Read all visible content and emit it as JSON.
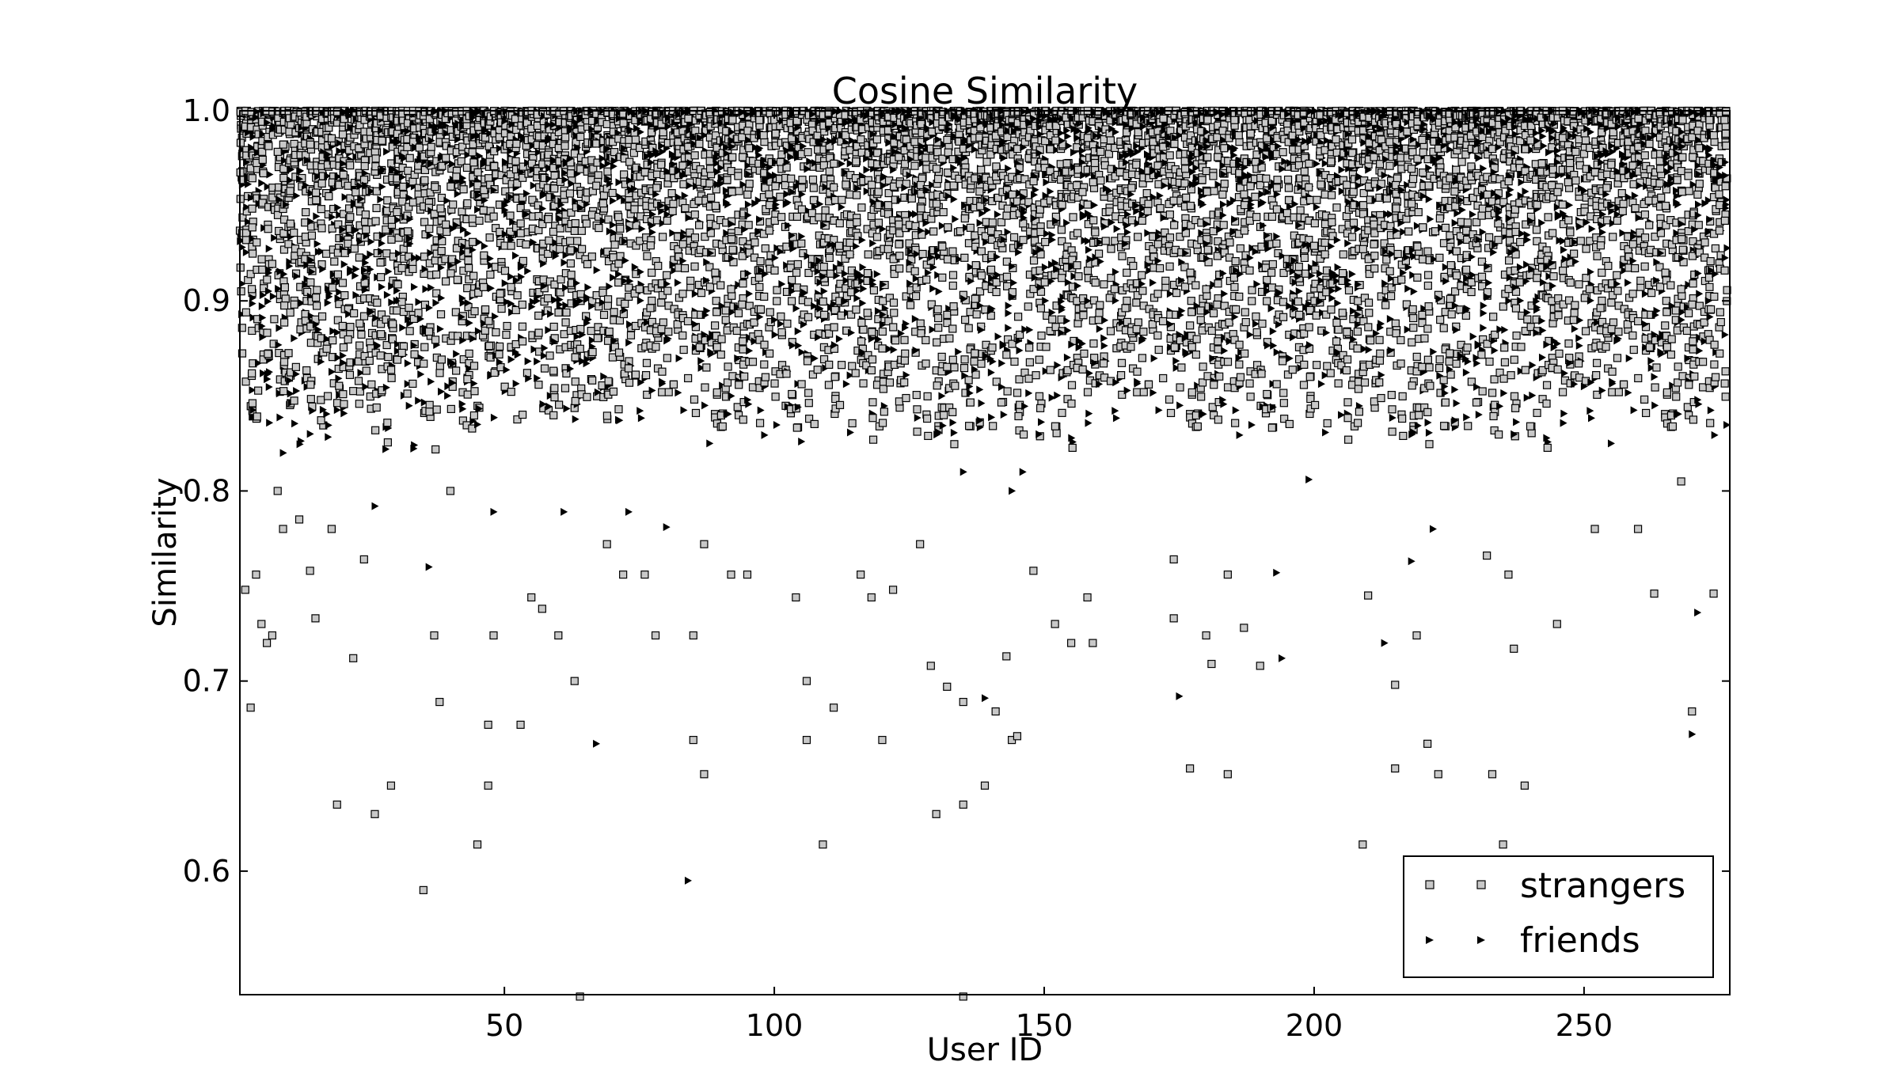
{
  "chart_data": {
    "type": "scatter",
    "title": "Cosine Similarity",
    "xlabel": "User ID",
    "ylabel": "Similarity",
    "xlim": [
      1,
      277
    ],
    "ylim": [
      0.535,
      1.0
    ],
    "xticks": [
      50,
      100,
      150,
      200,
      250
    ],
    "xtick_labels": [
      "50",
      "100",
      "150",
      "200",
      "250"
    ],
    "yticks": [
      0.6,
      0.7,
      0.8,
      0.9,
      1.0
    ],
    "ytick_labels": [
      "0.6",
      "0.7",
      "0.8",
      "0.9",
      "1.0"
    ],
    "grid": false,
    "legend_position": "lower-right",
    "series": [
      {
        "name": "strangers",
        "marker": "square",
        "color": "#c8c8c8",
        "edge_color": "#000000",
        "points": [
          [
            2,
            0.748
          ],
          [
            3,
            0.686
          ],
          [
            4,
            0.756
          ],
          [
            5,
            0.73
          ],
          [
            6,
            0.72
          ],
          [
            7,
            0.724
          ],
          [
            8,
            0.8
          ],
          [
            9,
            0.78
          ],
          [
            12,
            0.785
          ],
          [
            14,
            0.758
          ],
          [
            15,
            0.733
          ],
          [
            18,
            0.78
          ],
          [
            19,
            0.635
          ],
          [
            22,
            0.712
          ],
          [
            24,
            0.764
          ],
          [
            26,
            0.63
          ],
          [
            29,
            0.645
          ],
          [
            35,
            0.59
          ],
          [
            37,
            0.724
          ],
          [
            38,
            0.689
          ],
          [
            40,
            0.8
          ],
          [
            45,
            0.614
          ],
          [
            47,
            0.677
          ],
          [
            47,
            0.645
          ],
          [
            48,
            0.724
          ],
          [
            53,
            0.677
          ],
          [
            55,
            0.744
          ],
          [
            57,
            0.738
          ],
          [
            60,
            0.724
          ],
          [
            63,
            0.7
          ],
          [
            64,
            0.534
          ],
          [
            69,
            0.772
          ],
          [
            72,
            0.756
          ],
          [
            76,
            0.756
          ],
          [
            78,
            0.724
          ],
          [
            85,
            0.669
          ],
          [
            85,
            0.724
          ],
          [
            87,
            0.651
          ],
          [
            87,
            0.772
          ],
          [
            92,
            0.756
          ],
          [
            95,
            0.756
          ],
          [
            104,
            0.744
          ],
          [
            106,
            0.7
          ],
          [
            106,
            0.669
          ],
          [
            109,
            0.614
          ],
          [
            111,
            0.686
          ],
          [
            116,
            0.756
          ],
          [
            118,
            0.744
          ],
          [
            120,
            0.669
          ],
          [
            122,
            0.748
          ],
          [
            127,
            0.772
          ],
          [
            129,
            0.708
          ],
          [
            130,
            0.63
          ],
          [
            132,
            0.697
          ],
          [
            135,
            0.689
          ],
          [
            135,
            0.635
          ],
          [
            135,
            0.534
          ],
          [
            139,
            0.645
          ],
          [
            141,
            0.684
          ],
          [
            143,
            0.713
          ],
          [
            144,
            0.669
          ],
          [
            145,
            0.671
          ],
          [
            148,
            0.758
          ],
          [
            152,
            0.73
          ],
          [
            155,
            0.72
          ],
          [
            158,
            0.744
          ],
          [
            159,
            0.72
          ],
          [
            174,
            0.733
          ],
          [
            174,
            0.764
          ],
          [
            177,
            0.654
          ],
          [
            180,
            0.724
          ],
          [
            181,
            0.709
          ],
          [
            184,
            0.651
          ],
          [
            184,
            0.756
          ],
          [
            187,
            0.728
          ],
          [
            190,
            0.708
          ],
          [
            209,
            0.614
          ],
          [
            210,
            0.745
          ],
          [
            215,
            0.654
          ],
          [
            215,
            0.698
          ],
          [
            219,
            0.724
          ],
          [
            221,
            0.667
          ],
          [
            223,
            0.651
          ],
          [
            232,
            0.766
          ],
          [
            233,
            0.651
          ],
          [
            235,
            0.614
          ],
          [
            236,
            0.756
          ],
          [
            237,
            0.717
          ],
          [
            239,
            0.645
          ],
          [
            245,
            0.73
          ],
          [
            252,
            0.78
          ],
          [
            260,
            0.78
          ],
          [
            263,
            0.746
          ],
          [
            268,
            0.805
          ],
          [
            270,
            0.684
          ],
          [
            274,
            0.746
          ]
        ]
      },
      {
        "name": "friends",
        "marker": "triangle-right",
        "color": "#000000",
        "edge_color": "#000000",
        "points": [
          [
            9,
            0.82
          ],
          [
            14,
            0.83
          ],
          [
            16,
            0.868
          ],
          [
            26,
            0.792
          ],
          [
            28,
            0.822
          ],
          [
            30,
            0.9
          ],
          [
            36,
            0.76
          ],
          [
            40,
            0.868
          ],
          [
            45,
            0.835
          ],
          [
            48,
            0.789
          ],
          [
            56,
            0.9
          ],
          [
            61,
            0.789
          ],
          [
            64,
            0.9
          ],
          [
            67,
            0.667
          ],
          [
            73,
            0.789
          ],
          [
            80,
            0.781
          ],
          [
            84,
            0.595
          ],
          [
            88,
            0.825
          ],
          [
            92,
            0.85
          ],
          [
            100,
            0.89
          ],
          [
            105,
            0.826
          ],
          [
            112,
            0.88
          ],
          [
            118,
            0.88
          ],
          [
            125,
            0.92
          ],
          [
            131,
            0.85
          ],
          [
            135,
            0.81
          ],
          [
            139,
            0.691
          ],
          [
            144,
            0.8
          ],
          [
            146,
            0.81
          ],
          [
            152,
            0.92
          ],
          [
            158,
            0.9
          ],
          [
            165,
            0.93
          ],
          [
            175,
            0.692
          ],
          [
            180,
            0.93
          ],
          [
            186,
            0.87
          ],
          [
            193,
            0.757
          ],
          [
            194,
            0.712
          ],
          [
            199,
            0.806
          ],
          [
            205,
            0.84
          ],
          [
            213,
            0.72
          ],
          [
            218,
            0.763
          ],
          [
            222,
            0.78
          ],
          [
            230,
            0.87
          ],
          [
            236,
            0.9
          ],
          [
            244,
            0.92
          ],
          [
            250,
            0.855
          ],
          [
            255,
            0.825
          ],
          [
            263,
            0.86
          ],
          [
            268,
            0.89
          ],
          [
            270,
            0.672
          ],
          [
            271,
            0.736
          ],
          [
            273,
            0.9
          ]
        ]
      }
    ],
    "dense_band": {
      "range": [
        0.82,
        1.0
      ],
      "note_free": true
    },
    "legend": [
      {
        "label": "strangers",
        "marker": "square"
      },
      {
        "label": "friends",
        "marker": "triangle-right"
      }
    ]
  }
}
